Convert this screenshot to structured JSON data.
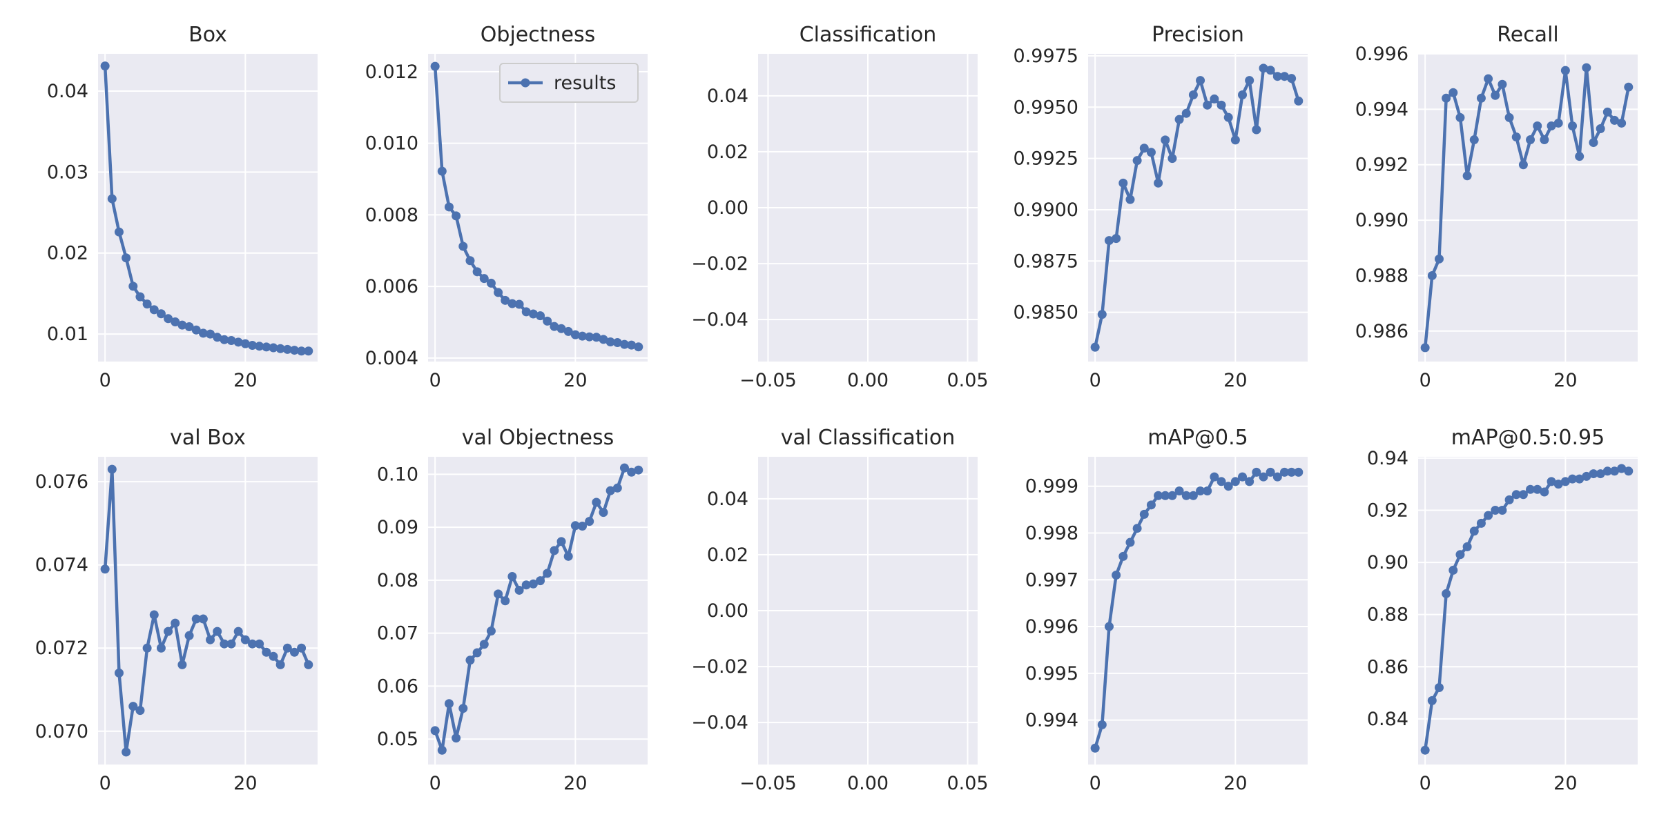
{
  "figure": {
    "colors": {
      "series": "#4C72B0",
      "panel_bg": "#EAEAF2",
      "grid": "#FFFFFF",
      "text": "#262626"
    }
  },
  "chart_data": [
    {
      "type": "line",
      "title": "Box",
      "grid": true,
      "legend": null,
      "x": [
        0,
        1,
        2,
        3,
        4,
        5,
        6,
        7,
        8,
        9,
        10,
        11,
        12,
        13,
        14,
        15,
        16,
        17,
        18,
        19,
        20,
        21,
        22,
        23,
        24,
        25,
        26,
        27,
        28,
        29
      ],
      "xlim": [
        -1,
        30.3
      ],
      "xticks": [
        0,
        20
      ],
      "xtick_labels": [
        "0",
        "20"
      ],
      "ylim": [
        0.0066,
        0.0446
      ],
      "yticks": [
        0.01,
        0.02,
        0.03,
        0.04
      ],
      "ytick_labels": [
        "0.01",
        "0.02",
        "0.03",
        "0.04"
      ],
      "series": [
        {
          "values": [
            0.0431,
            0.0267,
            0.0226,
            0.0194,
            0.0159,
            0.0146,
            0.0137,
            0.013,
            0.0125,
            0.0119,
            0.0115,
            0.0111,
            0.0109,
            0.0105,
            0.0101,
            0.01,
            0.0096,
            0.0093,
            0.0092,
            0.009,
            0.0088,
            0.0086,
            0.0085,
            0.0084,
            0.0083,
            0.0082,
            0.0081,
            0.008,
            0.0079,
            0.0079
          ]
        }
      ]
    },
    {
      "type": "line",
      "title": "Objectness",
      "grid": true,
      "legend": {
        "label": "results",
        "position": "upper right"
      },
      "x": [
        0,
        1,
        2,
        3,
        4,
        5,
        6,
        7,
        8,
        9,
        10,
        11,
        12,
        13,
        14,
        15,
        16,
        17,
        18,
        19,
        20,
        21,
        22,
        23,
        24,
        25,
        26,
        27,
        28,
        29
      ],
      "xlim": [
        -1,
        30.3
      ],
      "xticks": [
        0,
        20
      ],
      "xtick_labels": [
        "0",
        "20"
      ],
      "ylim": [
        0.0039,
        0.0125
      ],
      "yticks": [
        0.004,
        0.006,
        0.008,
        0.01,
        0.012
      ],
      "ytick_labels": [
        "0.004",
        "0.006",
        "0.008",
        "0.010",
        "0.012"
      ],
      "series": [
        {
          "name": "results",
          "values": [
            0.01215,
            0.00922,
            0.00822,
            0.00797,
            0.00712,
            0.00672,
            0.00641,
            0.00622,
            0.00609,
            0.00583,
            0.00561,
            0.00552,
            0.0055,
            0.00529,
            0.00523,
            0.00518,
            0.00503,
            0.00488,
            0.00482,
            0.00474,
            0.00465,
            0.00461,
            0.00459,
            0.00458,
            0.00452,
            0.00445,
            0.00443,
            0.00438,
            0.00436,
            0.00431
          ]
        }
      ]
    },
    {
      "type": "line",
      "title": "Classification",
      "grid": true,
      "legend": null,
      "x": [],
      "xlim": [
        -0.055,
        0.055
      ],
      "xticks": [
        -0.05,
        0,
        0.05
      ],
      "xtick_labels": [
        "−0.05",
        "0.00",
        "0.05"
      ],
      "ylim": [
        -0.055,
        0.055
      ],
      "yticks": [
        -0.04,
        -0.02,
        0,
        0.02,
        0.04
      ],
      "ytick_labels": [
        "−0.04",
        "−0.02",
        "0.00",
        "0.02",
        "0.04"
      ],
      "series": []
    },
    {
      "type": "line",
      "title": "Precision",
      "grid": true,
      "legend": null,
      "x": [
        0,
        1,
        2,
        3,
        4,
        5,
        6,
        7,
        8,
        9,
        10,
        11,
        12,
        13,
        14,
        15,
        16,
        17,
        18,
        19,
        20,
        21,
        22,
        23,
        24,
        25,
        26,
        27,
        28,
        29
      ],
      "xlim": [
        -1,
        30.3
      ],
      "xticks": [
        0,
        20
      ],
      "xtick_labels": [
        "0",
        "20"
      ],
      "ylim": [
        0.9826,
        0.9976
      ],
      "yticks": [
        0.985,
        0.9875,
        0.99,
        0.9925,
        0.995,
        0.9975
      ],
      "ytick_labels": [
        "0.9850",
        "0.9875",
        "0.9900",
        "0.9925",
        "0.9950",
        "0.9975"
      ],
      "series": [
        {
          "values": [
            0.9833,
            0.9849,
            0.9885,
            0.9886,
            0.9913,
            0.9905,
            0.9924,
            0.993,
            0.9928,
            0.9913,
            0.9934,
            0.9925,
            0.9944,
            0.9947,
            0.9956,
            0.9963,
            0.9951,
            0.9954,
            0.9951,
            0.9945,
            0.9934,
            0.9956,
            0.9963,
            0.9939,
            0.9969,
            0.9968,
            0.9965,
            0.9965,
            0.9964,
            0.9953
          ]
        }
      ]
    },
    {
      "type": "line",
      "title": "Recall",
      "grid": true,
      "legend": null,
      "x": [
        0,
        1,
        2,
        3,
        4,
        5,
        6,
        7,
        8,
        9,
        10,
        11,
        12,
        13,
        14,
        15,
        16,
        17,
        18,
        19,
        20,
        21,
        22,
        23,
        24,
        25,
        26,
        27,
        28,
        29
      ],
      "xlim": [
        -1,
        30.3
      ],
      "xticks": [
        0,
        20
      ],
      "xtick_labels": [
        "0",
        "20"
      ],
      "ylim": [
        0.9849,
        0.996
      ],
      "yticks": [
        0.986,
        0.988,
        0.99,
        0.992,
        0.994,
        0.996
      ],
      "ytick_labels": [
        "0.986",
        "0.988",
        "0.990",
        "0.992",
        "0.994",
        "0.996"
      ],
      "series": [
        {
          "values": [
            0.9854,
            0.988,
            0.9886,
            0.9944,
            0.9946,
            0.9937,
            0.9916,
            0.9929,
            0.9944,
            0.9951,
            0.9945,
            0.9949,
            0.9937,
            0.993,
            0.992,
            0.9929,
            0.9934,
            0.9929,
            0.9934,
            0.9935,
            0.9954,
            0.9934,
            0.9923,
            0.9955,
            0.9928,
            0.9933,
            0.9939,
            0.9936,
            0.9935,
            0.9948
          ]
        }
      ]
    },
    {
      "type": "line",
      "title": "val Box",
      "grid": true,
      "legend": null,
      "x": [
        0,
        1,
        2,
        3,
        4,
        5,
        6,
        7,
        8,
        9,
        10,
        11,
        12,
        13,
        14,
        15,
        16,
        17,
        18,
        19,
        20,
        21,
        22,
        23,
        24,
        25,
        26,
        27,
        28,
        29
      ],
      "xlim": [
        -1,
        30.3
      ],
      "xticks": [
        0,
        20
      ],
      "xtick_labels": [
        "0",
        "20"
      ],
      "ylim": [
        0.0692,
        0.0766
      ],
      "yticks": [
        0.07,
        0.072,
        0.074,
        0.076
      ],
      "ytick_labels": [
        "0.070",
        "0.072",
        "0.074",
        "0.076"
      ],
      "series": [
        {
          "values": [
            0.0739,
            0.0763,
            0.0714,
            0.0695,
            0.0706,
            0.0705,
            0.072,
            0.0728,
            0.072,
            0.0724,
            0.0726,
            0.0716,
            0.0723,
            0.0727,
            0.0727,
            0.0722,
            0.0724,
            0.0721,
            0.0721,
            0.0724,
            0.0722,
            0.0721,
            0.0721,
            0.0719,
            0.0718,
            0.0716,
            0.072,
            0.0719,
            0.072,
            0.0716
          ]
        }
      ]
    },
    {
      "type": "line",
      "title": "val Objectness",
      "grid": true,
      "legend": null,
      "x": [
        0,
        1,
        2,
        3,
        4,
        5,
        6,
        7,
        8,
        9,
        10,
        11,
        12,
        13,
        14,
        15,
        16,
        17,
        18,
        19,
        20,
        21,
        22,
        23,
        24,
        25,
        26,
        27,
        28,
        29
      ],
      "xlim": [
        -1,
        30.3
      ],
      "xticks": [
        0,
        20
      ],
      "xtick_labels": [
        "0",
        "20"
      ],
      "ylim": [
        0.0452,
        0.1033
      ],
      "yticks": [
        0.05,
        0.06,
        0.07,
        0.08,
        0.09,
        0.1
      ],
      "ytick_labels": [
        "0.05",
        "0.06",
        "0.07",
        "0.08",
        "0.09",
        "0.10"
      ],
      "series": [
        {
          "values": [
            0.0516,
            0.0479,
            0.0567,
            0.0502,
            0.0558,
            0.0649,
            0.0663,
            0.0679,
            0.0704,
            0.0774,
            0.0761,
            0.0807,
            0.0781,
            0.0791,
            0.0793,
            0.0799,
            0.0813,
            0.0856,
            0.0873,
            0.0845,
            0.0903,
            0.0902,
            0.0911,
            0.0947,
            0.0928,
            0.0969,
            0.0974,
            0.1012,
            0.1004,
            0.1008
          ]
        }
      ]
    },
    {
      "type": "line",
      "title": "val Classification",
      "grid": true,
      "legend": null,
      "x": [],
      "xlim": [
        -0.055,
        0.055
      ],
      "xticks": [
        -0.05,
        0,
        0.05
      ],
      "xtick_labels": [
        "−0.05",
        "0.00",
        "0.05"
      ],
      "ylim": [
        -0.055,
        0.055
      ],
      "yticks": [
        -0.04,
        -0.02,
        0,
        0.02,
        0.04
      ],
      "ytick_labels": [
        "−0.04",
        "−0.02",
        "0.00",
        "0.02",
        "0.04"
      ],
      "series": []
    },
    {
      "type": "line",
      "title": "mAP@0.5",
      "grid": true,
      "legend": null,
      "x": [
        0,
        1,
        2,
        3,
        4,
        5,
        6,
        7,
        8,
        9,
        10,
        11,
        12,
        13,
        14,
        15,
        16,
        17,
        18,
        19,
        20,
        21,
        22,
        23,
        24,
        25,
        26,
        27,
        28,
        29
      ],
      "xlim": [
        -1,
        30.3
      ],
      "xticks": [
        0,
        20
      ],
      "xtick_labels": [
        "0",
        "20"
      ],
      "ylim": [
        0.99305,
        0.99963
      ],
      "yticks": [
        0.994,
        0.995,
        0.996,
        0.997,
        0.998,
        0.999
      ],
      "ytick_labels": [
        "0.994",
        "0.995",
        "0.996",
        "0.997",
        "0.998",
        "0.999"
      ],
      "series": [
        {
          "values": [
            0.9934,
            0.9939,
            0.996,
            0.9971,
            0.9975,
            0.9978,
            0.9981,
            0.9984,
            0.9986,
            0.9988,
            0.9988,
            0.9988,
            0.9989,
            0.9988,
            0.9988,
            0.9989,
            0.9989,
            0.9992,
            0.9991,
            0.999,
            0.9991,
            0.9992,
            0.9991,
            0.9993,
            0.9992,
            0.9993,
            0.9992,
            0.9993,
            0.9993,
            0.9993
          ]
        }
      ]
    },
    {
      "type": "line",
      "title": "mAP@0.5:0.95",
      "grid": true,
      "legend": null,
      "x": [
        0,
        1,
        2,
        3,
        4,
        5,
        6,
        7,
        8,
        9,
        10,
        11,
        12,
        13,
        14,
        15,
        16,
        17,
        18,
        19,
        20,
        21,
        22,
        23,
        24,
        25,
        26,
        27,
        28,
        29
      ],
      "xlim": [
        -1,
        30.3
      ],
      "xticks": [
        0,
        20
      ],
      "xtick_labels": [
        "0",
        "20"
      ],
      "ylim": [
        0.8225,
        0.9405
      ],
      "yticks": [
        0.84,
        0.86,
        0.88,
        0.9,
        0.92,
        0.94
      ],
      "ytick_labels": [
        "0.84",
        "0.86",
        "0.88",
        "0.90",
        "0.92",
        "0.94"
      ],
      "series": [
        {
          "values": [
            0.828,
            0.847,
            0.852,
            0.888,
            0.897,
            0.903,
            0.906,
            0.912,
            0.915,
            0.918,
            0.92,
            0.92,
            0.924,
            0.926,
            0.926,
            0.928,
            0.928,
            0.927,
            0.931,
            0.93,
            0.931,
            0.932,
            0.932,
            0.933,
            0.934,
            0.934,
            0.935,
            0.935,
            0.936,
            0.935
          ]
        }
      ]
    }
  ]
}
